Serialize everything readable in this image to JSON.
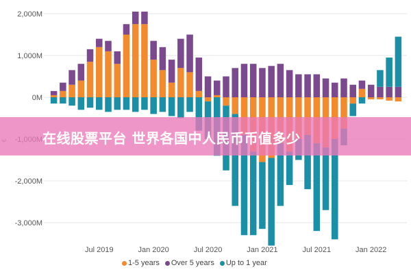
{
  "banner": {
    "text": "在线股票平台 世界各国中人民币币值多少"
  },
  "chart_data": {
    "type": "bar",
    "stacked": true,
    "ylabel": "€",
    "ylim": [
      -3300,
      2200
    ],
    "y_ticks": [
      2000,
      1000,
      0,
      -1000,
      -2000,
      -3000
    ],
    "y_tick_labels": [
      "2,000M",
      "1,000M",
      "0M",
      "-1,000M",
      "-2,000M",
      "-3,000M"
    ],
    "x_tick_labels": [
      {
        "label": "Jul 2019",
        "index": 5
      },
      {
        "label": "Jan 2020",
        "index": 11
      },
      {
        "label": "Jul 2020",
        "index": 17
      },
      {
        "label": "Jan 2021",
        "index": 23
      },
      {
        "label": "Jul 2021",
        "index": 29
      },
      {
        "label": "Jan 2022",
        "index": 35
      }
    ],
    "grid": true,
    "legend_position": "bottom",
    "colors": {
      "1-5 years": "#f28a2e",
      "Over 5 years": "#7b4a8e",
      "Up to 1 year": "#1b8fa6"
    },
    "categories": [
      "1",
      "2",
      "3",
      "4",
      "5",
      "6",
      "7",
      "8",
      "9",
      "10",
      "11",
      "12",
      "13",
      "14",
      "15",
      "16",
      "17",
      "18",
      "19",
      "20",
      "21",
      "22",
      "23",
      "24",
      "25",
      "26",
      "27",
      "28",
      "29",
      "30",
      "31",
      "32",
      "33",
      "34",
      "35",
      "36",
      "37",
      "38",
      "39"
    ],
    "series": [
      {
        "name": "1-5 years",
        "values": [
          50,
          150,
          300,
          400,
          850,
          1200,
          1100,
          800,
          1500,
          1750,
          1750,
          900,
          650,
          350,
          700,
          600,
          150,
          -100,
          50,
          -200,
          -400,
          -900,
          -1300,
          -1550,
          -1450,
          -1100,
          -1300,
          -1000,
          -900,
          -1100,
          -1200,
          -1000,
          -750,
          -150,
          200,
          -50,
          -50,
          -80,
          -100
        ]
      },
      {
        "name": "Over 5 years",
        "values": [
          100,
          200,
          350,
          400,
          300,
          200,
          250,
          300,
          250,
          300,
          300,
          450,
          550,
          550,
          700,
          900,
          800,
          500,
          350,
          500,
          700,
          800,
          800,
          700,
          750,
          800,
          650,
          550,
          550,
          550,
          450,
          350,
          450,
          300,
          200,
          300,
          250,
          250,
          250
        ]
      },
      {
        "name": "Up to 1 year",
        "values": [
          -150,
          -150,
          -200,
          -300,
          -250,
          -300,
          -350,
          -300,
          -300,
          -350,
          -300,
          -400,
          -350,
          -450,
          -500,
          -350,
          -800,
          -900,
          -1400,
          -1550,
          -2200,
          -2400,
          -2000,
          -1600,
          -2100,
          -1500,
          -800,
          -500,
          -1300,
          -2100,
          -1500,
          -2400,
          -400,
          -300,
          -150,
          0,
          400,
          700,
          1200
        ]
      }
    ]
  },
  "legend": {
    "items": [
      {
        "label": "1-5 years",
        "color": "#f28a2e"
      },
      {
        "label": "Over 5 years",
        "color": "#7b4a8e"
      },
      {
        "label": "Up to 1 year",
        "color": "#1b8fa6"
      }
    ]
  }
}
